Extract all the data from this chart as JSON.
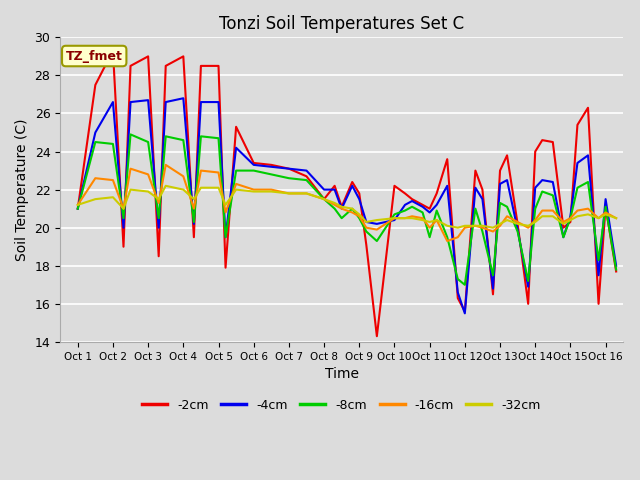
{
  "title": "Tonzi Soil Temperatures Set C",
  "xlabel": "Time",
  "ylabel": "Soil Temperature (C)",
  "annotation": "TZ_fmet",
  "ylim": [
    14,
    30
  ],
  "xlim": [
    -0.5,
    15.5
  ],
  "background_color": "#dcdcdc",
  "fig_facecolor": "#dcdcdc",
  "xtick_labels": [
    "Oct 1",
    "Oct 2",
    "Oct 3",
    "Oct 4",
    "Oct 5",
    "Oct 6",
    "Oct 7",
    "Oct 8",
    "Oct 9",
    "Oct 10",
    "Oct 11",
    "Oct 12",
    "Oct 13",
    "Oct 14",
    "Oct 15",
    "Oct 16"
  ],
  "series": {
    "-2cm": {
      "color": "#ee0000",
      "x": [
        0,
        0.5,
        1.0,
        1.3,
        1.5,
        2.0,
        2.3,
        2.5,
        3.0,
        3.3,
        3.5,
        4.0,
        4.2,
        4.5,
        5.0,
        5.5,
        6.0,
        6.5,
        7.0,
        7.3,
        7.5,
        7.8,
        8.0,
        8.2,
        8.5,
        9.0,
        9.3,
        9.5,
        9.8,
        10.0,
        10.2,
        10.5,
        10.8,
        11.0,
        11.3,
        11.5,
        11.8,
        12.0,
        12.2,
        12.5,
        12.8,
        13.0,
        13.2,
        13.5,
        13.8,
        14.0,
        14.2,
        14.5,
        14.8,
        15.0,
        15.3
      ],
      "y": [
        21.0,
        27.5,
        29.3,
        19.0,
        28.5,
        29.0,
        18.5,
        28.5,
        29.0,
        19.5,
        28.5,
        28.5,
        17.9,
        25.3,
        23.4,
        23.3,
        23.1,
        22.7,
        21.5,
        22.2,
        21.1,
        22.4,
        21.8,
        19.1,
        14.3,
        22.2,
        21.8,
        21.5,
        21.2,
        21.0,
        21.8,
        23.6,
        16.3,
        15.6,
        23.0,
        22.0,
        16.5,
        23.0,
        23.8,
        20.2,
        16.0,
        24.0,
        24.6,
        24.5,
        20.0,
        20.3,
        25.4,
        26.3,
        16.0,
        21.1,
        17.7
      ]
    },
    "-4cm": {
      "color": "#0000ee",
      "x": [
        0,
        0.5,
        1.0,
        1.3,
        1.5,
        2.0,
        2.3,
        2.5,
        3.0,
        3.3,
        3.5,
        4.0,
        4.2,
        4.5,
        5.0,
        5.5,
        6.0,
        6.5,
        7.0,
        7.3,
        7.5,
        7.8,
        8.0,
        8.2,
        8.5,
        9.0,
        9.3,
        9.5,
        9.8,
        10.0,
        10.2,
        10.5,
        10.8,
        11.0,
        11.3,
        11.5,
        11.8,
        12.0,
        12.2,
        12.5,
        12.8,
        13.0,
        13.2,
        13.5,
        13.8,
        14.0,
        14.2,
        14.5,
        14.8,
        15.0,
        15.3
      ],
      "y": [
        21.0,
        25.0,
        26.6,
        20.0,
        26.6,
        26.7,
        20.0,
        26.6,
        26.8,
        20.2,
        26.6,
        26.6,
        19.5,
        24.2,
        23.3,
        23.2,
        23.1,
        23.0,
        22.0,
        22.0,
        21.0,
        22.2,
        21.5,
        20.3,
        20.2,
        20.4,
        21.2,
        21.4,
        21.1,
        20.8,
        21.2,
        22.2,
        16.6,
        15.5,
        22.1,
        21.5,
        16.8,
        22.3,
        22.5,
        19.9,
        16.9,
        22.1,
        22.5,
        22.4,
        19.5,
        20.6,
        23.4,
        23.8,
        17.5,
        21.5,
        18.0
      ]
    },
    "-8cm": {
      "color": "#00cc00",
      "x": [
        0,
        0.5,
        1.0,
        1.3,
        1.5,
        2.0,
        2.3,
        2.5,
        3.0,
        3.3,
        3.5,
        4.0,
        4.2,
        4.5,
        5.0,
        5.5,
        6.0,
        6.5,
        7.0,
        7.3,
        7.5,
        7.8,
        8.0,
        8.2,
        8.5,
        9.0,
        9.3,
        9.5,
        9.8,
        10.0,
        10.2,
        10.5,
        10.8,
        11.0,
        11.3,
        11.5,
        11.8,
        12.0,
        12.2,
        12.5,
        12.8,
        13.0,
        13.2,
        13.5,
        13.8,
        14.0,
        14.2,
        14.5,
        14.8,
        15.0,
        15.3
      ],
      "y": [
        21.0,
        24.5,
        24.4,
        20.5,
        24.9,
        24.5,
        20.5,
        24.8,
        24.6,
        20.3,
        24.8,
        24.7,
        19.5,
        23.0,
        23.0,
        22.8,
        22.6,
        22.5,
        21.5,
        21.0,
        20.5,
        21.0,
        20.5,
        19.8,
        19.3,
        20.7,
        20.9,
        21.1,
        20.8,
        19.5,
        20.9,
        19.5,
        17.3,
        17.0,
        21.0,
        19.8,
        17.5,
        21.3,
        21.1,
        19.8,
        17.2,
        21.0,
        21.9,
        21.7,
        19.5,
        20.5,
        22.1,
        22.4,
        18.3,
        21.1,
        17.8
      ]
    },
    "-16cm": {
      "color": "#ff8800",
      "x": [
        0,
        0.5,
        1.0,
        1.3,
        1.5,
        2.0,
        2.3,
        2.5,
        3.0,
        3.3,
        3.5,
        4.0,
        4.2,
        4.5,
        5.0,
        5.5,
        6.0,
        6.5,
        7.0,
        7.3,
        7.5,
        7.8,
        8.0,
        8.2,
        8.5,
        9.0,
        9.3,
        9.5,
        9.8,
        10.0,
        10.2,
        10.5,
        10.8,
        11.0,
        11.3,
        11.5,
        11.8,
        12.0,
        12.2,
        12.5,
        12.8,
        13.0,
        13.2,
        13.5,
        13.8,
        14.0,
        14.2,
        14.5,
        14.8,
        15.0,
        15.3
      ],
      "y": [
        21.2,
        22.6,
        22.5,
        21.0,
        23.1,
        22.8,
        21.3,
        23.3,
        22.7,
        21.0,
        23.0,
        22.9,
        20.8,
        22.3,
        22.0,
        22.0,
        21.8,
        21.8,
        21.5,
        21.2,
        21.0,
        20.8,
        20.6,
        20.0,
        19.9,
        20.5,
        20.5,
        20.6,
        20.5,
        20.0,
        20.4,
        19.3,
        19.5,
        20.0,
        20.1,
        20.0,
        19.8,
        20.1,
        20.6,
        20.3,
        20.0,
        20.4,
        20.9,
        20.9,
        20.3,
        20.5,
        20.9,
        21.0,
        20.5,
        20.8,
        20.5
      ]
    },
    "-32cm": {
      "color": "#cccc00",
      "x": [
        0,
        0.5,
        1.0,
        1.3,
        1.5,
        2.0,
        2.3,
        2.5,
        3.0,
        3.3,
        3.5,
        4.0,
        4.2,
        4.5,
        5.0,
        5.5,
        6.0,
        6.5,
        7.0,
        7.3,
        7.5,
        7.8,
        8.0,
        8.2,
        8.5,
        9.0,
        9.3,
        9.5,
        9.8,
        10.0,
        10.2,
        10.5,
        10.8,
        11.0,
        11.3,
        11.5,
        11.8,
        12.0,
        12.2,
        12.5,
        12.8,
        13.0,
        13.2,
        13.5,
        13.8,
        14.0,
        14.2,
        14.5,
        14.8,
        15.0,
        15.3
      ],
      "y": [
        21.2,
        21.5,
        21.6,
        21.0,
        22.0,
        21.9,
        21.5,
        22.2,
        22.0,
        21.5,
        22.1,
        22.1,
        21.2,
        22.0,
        21.9,
        21.9,
        21.8,
        21.8,
        21.5,
        21.3,
        21.1,
        21.0,
        20.7,
        20.3,
        20.4,
        20.5,
        20.5,
        20.5,
        20.4,
        20.3,
        20.4,
        20.1,
        20.0,
        20.1,
        20.1,
        20.1,
        20.0,
        20.2,
        20.4,
        20.2,
        20.1,
        20.3,
        20.6,
        20.6,
        20.2,
        20.4,
        20.6,
        20.7,
        20.5,
        20.7,
        20.5
      ]
    }
  },
  "legend_order": [
    "-2cm",
    "-4cm",
    "-8cm",
    "-16cm",
    "-32cm"
  ],
  "legend_colors": [
    "#ee0000",
    "#0000ee",
    "#00cc00",
    "#ff8800",
    "#cccc00"
  ]
}
